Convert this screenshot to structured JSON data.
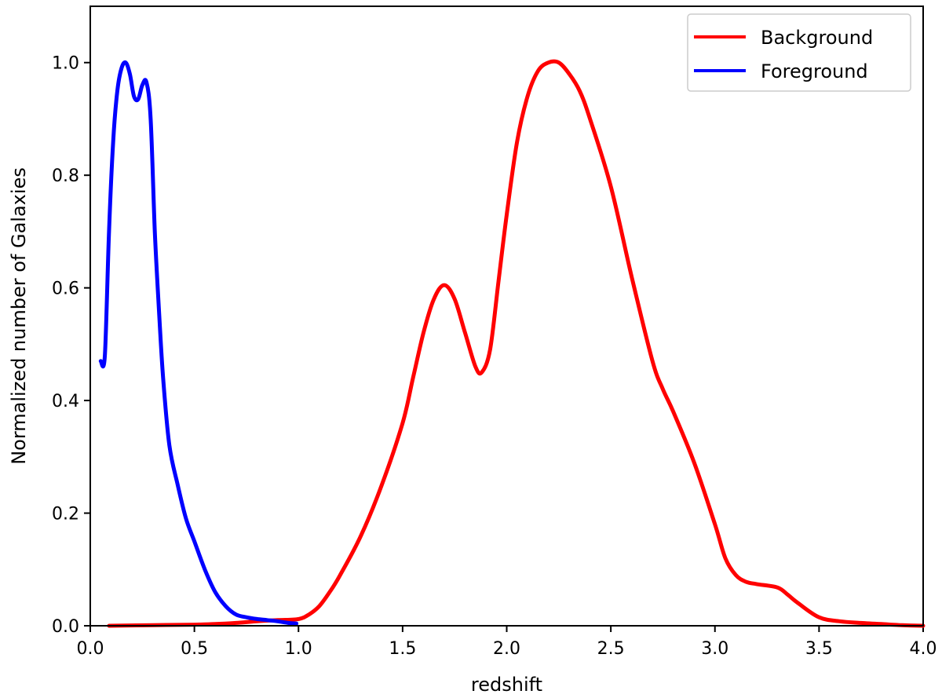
{
  "chart_data": {
    "type": "line",
    "title": "",
    "xlabel": "redshift",
    "ylabel": "Normalized number of Galaxies",
    "xlim": [
      0.0,
      4.0
    ],
    "ylim": [
      0.0,
      1.1
    ],
    "xticks": [
      0.0,
      0.5,
      1.0,
      1.5,
      2.0,
      2.5,
      3.0,
      3.5,
      4.0
    ],
    "yticks": [
      0.0,
      0.2,
      0.4,
      0.6,
      0.8,
      1.0
    ],
    "x_tick_labels": [
      "0.0",
      "0.5",
      "1.0",
      "1.5",
      "2.0",
      "2.5",
      "3.0",
      "3.5",
      "4.0"
    ],
    "y_tick_labels": [
      "0.0",
      "0.2",
      "0.4",
      "0.6",
      "0.8",
      "1.0"
    ],
    "grid": false,
    "legend_position": "top-right",
    "series": [
      {
        "name": "Background",
        "color": "#ff0000",
        "x": [
          0.09,
          0.3,
          0.5,
          0.6,
          0.7,
          0.8,
          0.9,
          1.0,
          1.05,
          1.1,
          1.15,
          1.2,
          1.3,
          1.4,
          1.5,
          1.55,
          1.6,
          1.65,
          1.7,
          1.75,
          1.8,
          1.85,
          1.88,
          1.92,
          1.96,
          2.0,
          2.05,
          2.1,
          2.15,
          2.2,
          2.25,
          2.3,
          2.35,
          2.4,
          2.5,
          2.6,
          2.7,
          2.75,
          2.8,
          2.9,
          3.0,
          3.05,
          3.1,
          3.15,
          3.2,
          3.3,
          3.35,
          3.4,
          3.5,
          3.6,
          3.7,
          3.8,
          3.9,
          4.0
        ],
        "y": [
          0.0,
          0.001,
          0.002,
          0.003,
          0.005,
          0.008,
          0.01,
          0.012,
          0.02,
          0.035,
          0.06,
          0.09,
          0.16,
          0.25,
          0.36,
          0.44,
          0.52,
          0.58,
          0.605,
          0.58,
          0.52,
          0.46,
          0.45,
          0.49,
          0.61,
          0.73,
          0.86,
          0.94,
          0.985,
          1.0,
          1.0,
          0.98,
          0.95,
          0.9,
          0.78,
          0.62,
          0.47,
          0.42,
          0.38,
          0.29,
          0.18,
          0.12,
          0.09,
          0.078,
          0.074,
          0.068,
          0.055,
          0.04,
          0.015,
          0.008,
          0.005,
          0.003,
          0.001,
          0.0
        ]
      },
      {
        "name": "Foreground",
        "color": "#0000ff",
        "x": [
          0.05,
          0.07,
          0.09,
          0.11,
          0.13,
          0.15,
          0.17,
          0.19,
          0.21,
          0.23,
          0.25,
          0.27,
          0.29,
          0.31,
          0.33,
          0.35,
          0.38,
          0.42,
          0.46,
          0.5,
          0.55,
          0.6,
          0.65,
          0.7,
          0.75,
          0.8,
          0.85,
          0.9,
          0.95,
          0.99
        ],
        "y": [
          0.47,
          0.48,
          0.7,
          0.86,
          0.95,
          0.99,
          1.0,
          0.98,
          0.94,
          0.935,
          0.96,
          0.965,
          0.9,
          0.7,
          0.56,
          0.44,
          0.32,
          0.25,
          0.19,
          0.15,
          0.1,
          0.06,
          0.035,
          0.02,
          0.015,
          0.012,
          0.01,
          0.008,
          0.005,
          0.004
        ]
      }
    ]
  }
}
